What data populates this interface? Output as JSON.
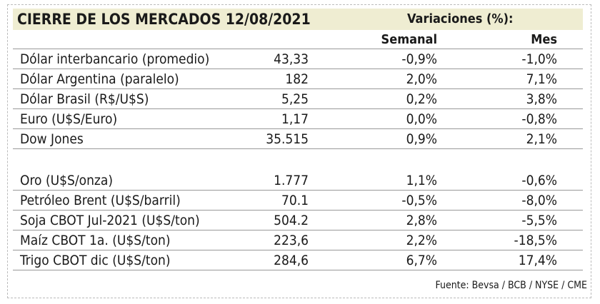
{
  "header": {
    "title": "CIERRE DE LOS MERCADOS 12/08/2021",
    "variations": "Variaciones (%):"
  },
  "columns": [
    "Semanal",
    "Mes"
  ],
  "groups": [
    [
      [
        "Dólar interbancario (promedio)",
        "43,33",
        "-0,9%",
        "-1,0%"
      ],
      [
        "Dólar Argentina (paralelo)",
        "182",
        "2,0%",
        "7,1%"
      ],
      [
        "Dólar Brasil (R$/U$S)",
        "5,25",
        "0,2%",
        "3,8%"
      ],
      [
        "Euro (U$S/Euro)",
        "1,17",
        "0,0%",
        "-0,8%"
      ],
      [
        "Dow Jones",
        "35.515",
        "0,9%",
        "2,1%"
      ]
    ],
    [
      [
        "Oro (U$S/onza)",
        "1.777",
        "1,1%",
        "-0,6%"
      ],
      [
        "Petróleo Brent (U$S/barril)",
        "70.1",
        "-0,5%",
        "-8,0%"
      ],
      [
        "Soja CBOT Jul-2021 (U$S/ton)",
        "504.2",
        "2,8%",
        "-5,5%"
      ],
      [
        "Maíz CBOT 1a. (U$S/ton)",
        "223,6",
        "2,2%",
        "-18,5%"
      ],
      [
        "Trigo CBOT dic (U$S/ton)",
        "284,6",
        "6,7%",
        "17,4%"
      ]
    ]
  ],
  "source": "Fuente: Bevsa / BCB / NYSE / CME"
}
